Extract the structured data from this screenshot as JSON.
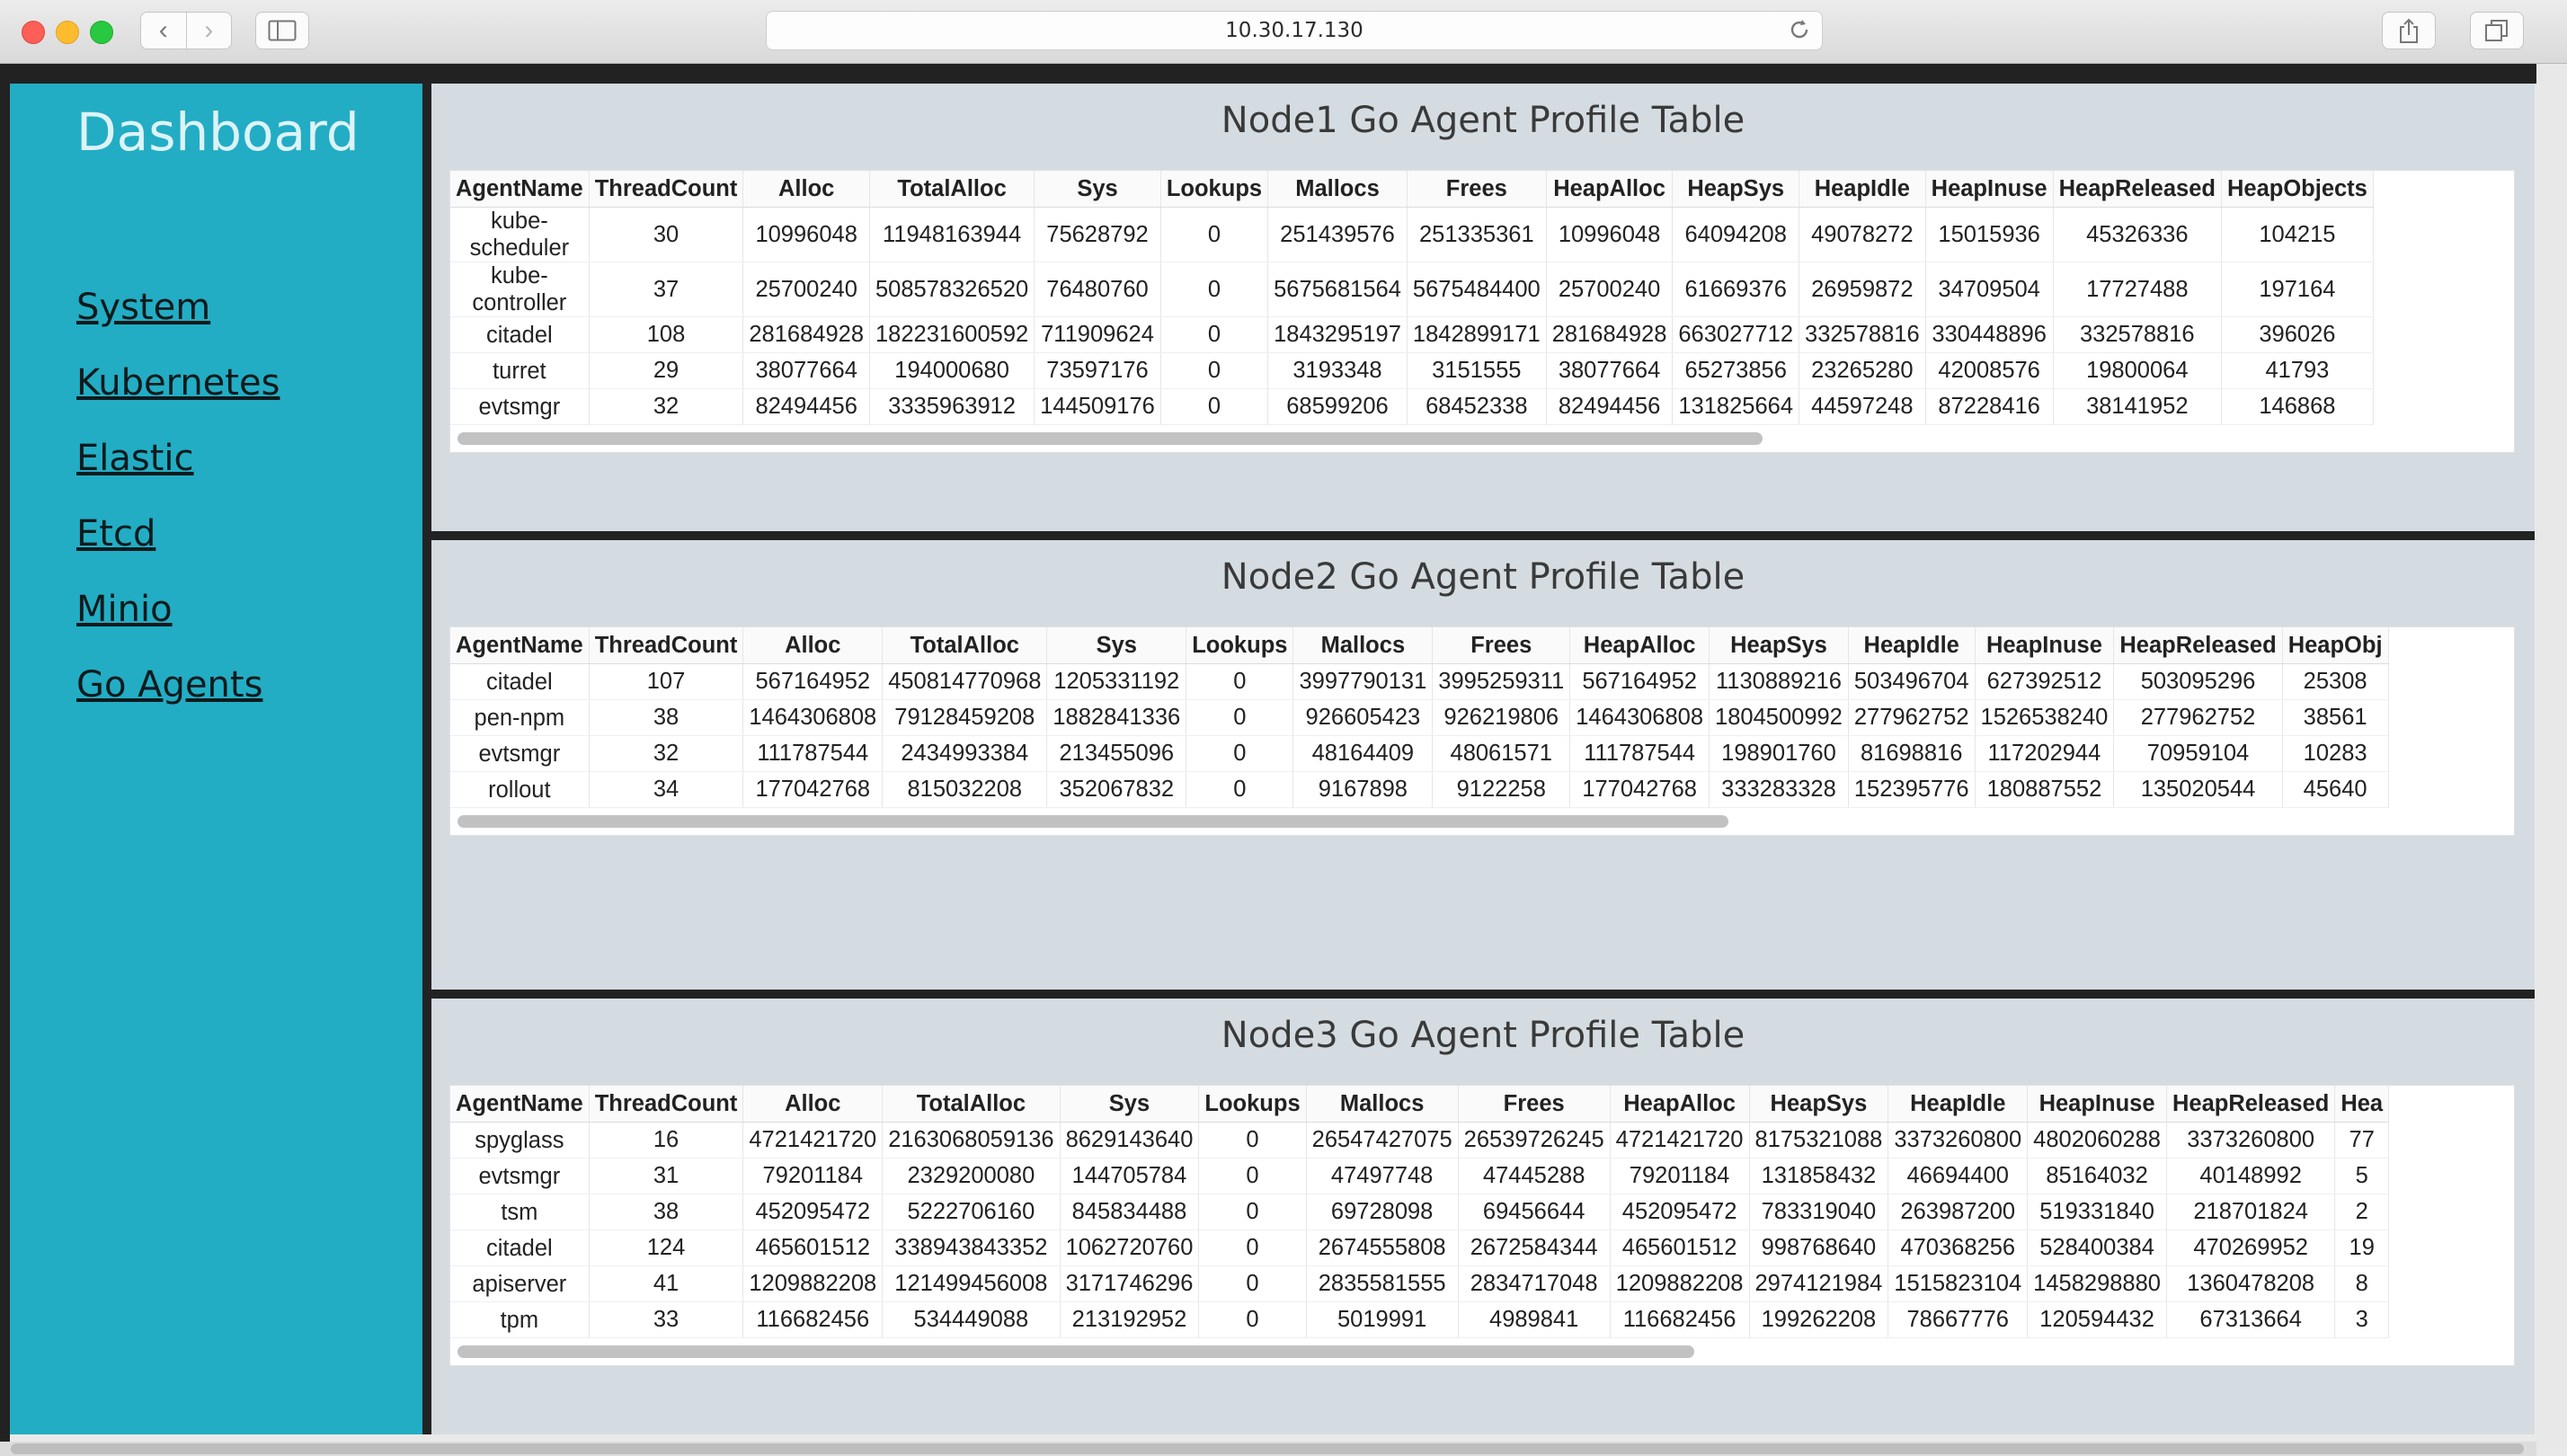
{
  "browser": {
    "url": "10.30.17.130",
    "back_glyph": "‹",
    "forward_glyph": "›",
    "icons": [
      "sidebar-toggle-icon",
      "reload-icon",
      "share-icon",
      "tabs-icon"
    ]
  },
  "sidebar": {
    "title": "Dashboard",
    "items": [
      {
        "label": "System"
      },
      {
        "label": "Kubernetes"
      },
      {
        "label": "Elastic"
      },
      {
        "label": "Etcd"
      },
      {
        "label": "Minio"
      },
      {
        "label": "Go Agents"
      }
    ]
  },
  "panels": [
    {
      "title": "Node1 Go Agent Profile Table",
      "columns": [
        "AgentName",
        "ThreadCount",
        "Alloc",
        "TotalAlloc",
        "Sys",
        "Lookups",
        "Mallocs",
        "Frees",
        "HeapAlloc",
        "HeapSys",
        "HeapIdle",
        "HeapInuse",
        "HeapReleased",
        "HeapObjects"
      ],
      "rows": [
        [
          "kube-\nscheduler",
          "30",
          "10996048",
          "11948163944",
          "75628792",
          "0",
          "251439576",
          "251335361",
          "10996048",
          "64094208",
          "49078272",
          "15015936",
          "45326336",
          "104215"
        ],
        [
          "kube-\ncontroller",
          "37",
          "25700240",
          "508578326520",
          "76480760",
          "0",
          "5675681564",
          "5675484400",
          "25700240",
          "61669376",
          "26959872",
          "34709504",
          "17727488",
          "197164"
        ],
        [
          "citadel",
          "108",
          "281684928",
          "182231600592",
          "711909624",
          "0",
          "1843295197",
          "1842899171",
          "281684928",
          "663027712",
          "332578816",
          "330448896",
          "332578816",
          "396026"
        ],
        [
          "turret",
          "29",
          "38077664",
          "194000680",
          "73597176",
          "0",
          "3193348",
          "3151555",
          "38077664",
          "65273856",
          "23265280",
          "42008576",
          "19800064",
          "41793"
        ],
        [
          "evtsmgr",
          "32",
          "82494456",
          "3335963912",
          "144509176",
          "0",
          "68599206",
          "68452338",
          "82494456",
          "131825664",
          "44597248",
          "87228416",
          "38141952",
          "146868"
        ]
      ]
    },
    {
      "title": "Node2 Go Agent Profile Table",
      "columns": [
        "AgentName",
        "ThreadCount",
        "Alloc",
        "TotalAlloc",
        "Sys",
        "Lookups",
        "Mallocs",
        "Frees",
        "HeapAlloc",
        "HeapSys",
        "HeapIdle",
        "HeapInuse",
        "HeapReleased",
        "HeapObj"
      ],
      "rows": [
        [
          "citadel",
          "107",
          "567164952",
          "450814770968",
          "1205331192",
          "0",
          "3997790131",
          "3995259311",
          "567164952",
          "1130889216",
          "503496704",
          "627392512",
          "503095296",
          "25308"
        ],
        [
          "pen-npm",
          "38",
          "1464306808",
          "79128459208",
          "1882841336",
          "0",
          "926605423",
          "926219806",
          "1464306808",
          "1804500992",
          "277962752",
          "1526538240",
          "277962752",
          "38561"
        ],
        [
          "evtsmgr",
          "32",
          "111787544",
          "2434993384",
          "213455096",
          "0",
          "48164409",
          "48061571",
          "111787544",
          "198901760",
          "81698816",
          "117202944",
          "70959104",
          "10283"
        ],
        [
          "rollout",
          "34",
          "177042768",
          "815032208",
          "352067832",
          "0",
          "9167898",
          "9122258",
          "177042768",
          "333283328",
          "152395776",
          "180887552",
          "135020544",
          "45640"
        ]
      ]
    },
    {
      "title": "Node3 Go Agent Profile Table",
      "columns": [
        "AgentName",
        "ThreadCount",
        "Alloc",
        "TotalAlloc",
        "Sys",
        "Lookups",
        "Mallocs",
        "Frees",
        "HeapAlloc",
        "HeapSys",
        "HeapIdle",
        "HeapInuse",
        "HeapReleased",
        "Hea"
      ],
      "rows": [
        [
          "spyglass",
          "16",
          "4721421720",
          "2163068059136",
          "8629143640",
          "0",
          "26547427075",
          "26539726245",
          "4721421720",
          "8175321088",
          "3373260800",
          "4802060288",
          "3373260800",
          "77"
        ],
        [
          "evtsmgr",
          "31",
          "79201184",
          "2329200080",
          "144705784",
          "0",
          "47497748",
          "47445288",
          "79201184",
          "131858432",
          "46694400",
          "85164032",
          "40148992",
          "5"
        ],
        [
          "tsm",
          "38",
          "452095472",
          "5222706160",
          "845834488",
          "0",
          "69728098",
          "69456644",
          "452095472",
          "783319040",
          "263987200",
          "519331840",
          "218701824",
          "2"
        ],
        [
          "citadel",
          "124",
          "465601512",
          "338943843352",
          "1062720760",
          "0",
          "2674555808",
          "2672584344",
          "465601512",
          "998768640",
          "470368256",
          "528400384",
          "470269952",
          "19"
        ],
        [
          "apiserver",
          "41",
          "1209882208",
          "121499456008",
          "3171746296",
          "0",
          "2835581555",
          "2834717048",
          "1209882208",
          "2974121984",
          "1515823104",
          "1458298880",
          "1360478208",
          "8"
        ],
        [
          "tpm",
          "33",
          "116682456",
          "534449088",
          "213192952",
          "0",
          "5019991",
          "4989841",
          "116682456",
          "199262208",
          "78667776",
          "120594432",
          "67313664",
          "3"
        ]
      ]
    }
  ]
}
